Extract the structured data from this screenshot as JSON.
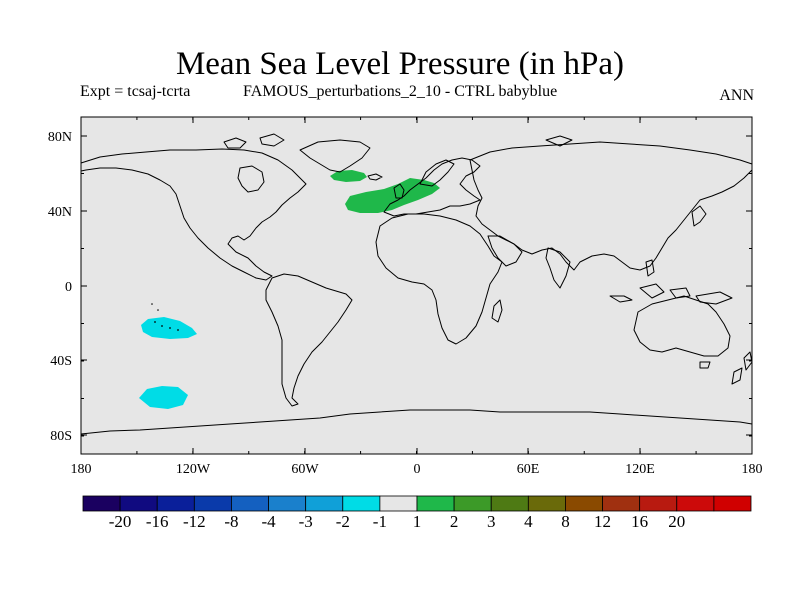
{
  "title": "Mean Sea Level Pressure (in hPa)",
  "subtitle_left": "Expt = tcsaj-tcrta",
  "subtitle_mid": "FAMOUS_perturbations_2_10 - CTRL babyblue",
  "subtitle_right": "ANN",
  "map": {
    "ocean_color": "#e6e6e6",
    "y_ticks": [
      "80N",
      "40N",
      "0",
      "40S",
      "80S"
    ],
    "x_ticks": [
      "180",
      "120W",
      "60W",
      "0",
      "60E",
      "120E",
      "180"
    ],
    "anomalies": [
      {
        "name": "greenland-sea-positive",
        "color": "#1fb84a",
        "level": "1 to 2"
      },
      {
        "name": "north-atlantic-europe-positive",
        "color": "#1fb84a",
        "level": "1 to 2"
      },
      {
        "name": "south-pacific-negative-north",
        "color": "#00dce6",
        "level": "-2 to -1"
      },
      {
        "name": "south-pacific-negative-south",
        "color": "#00dce6",
        "level": "-2 to -1"
      }
    ]
  },
  "colorbar": {
    "colors": [
      "#1a0060",
      "#100a80",
      "#0a1f9a",
      "#0a3aaa",
      "#1460c0",
      "#1a80cc",
      "#10a0d8",
      "#00dce6",
      "#e6e6e6",
      "#1fb84a",
      "#3c9a28",
      "#4e7a14",
      "#6a6a0a",
      "#8a4a00",
      "#a03010",
      "#b81a10",
      "#cc0a0a",
      "#d00000"
    ],
    "labels": [
      "-20",
      "-16",
      "-12",
      "-8",
      "-4",
      "-3",
      "-2",
      "-1",
      "1",
      "2",
      "3",
      "4",
      "8",
      "12",
      "16",
      "20"
    ]
  }
}
